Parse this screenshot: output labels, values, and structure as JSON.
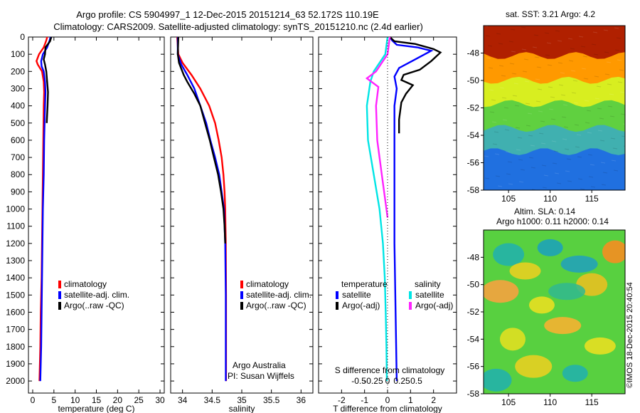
{
  "header": {
    "line1": "Argo profile: CS 5904997_1 12-Dec-2015 20151214_63 52.172S 110.19E",
    "line2": "Climatology: CARS2009. Satellite-adjusted climatology: synTS_20151210.nc (2.4d earlier)"
  },
  "footer": {
    "watermark": "©IMOS 18-Dec-2015 20:40:54"
  },
  "colors": {
    "climatology": "#ff0000",
    "satellite": "#0000ff",
    "argo": "#000000",
    "sal_satellite": "#00e5e5",
    "sal_argo": "#ff22ff"
  },
  "chart_data": [
    {
      "type": "line",
      "xlabel": "temperature (deg C)",
      "xlim": [
        -1,
        31
      ],
      "xticks": [
        "0",
        "5",
        "10",
        "15",
        "20",
        "25",
        "30"
      ],
      "ylim": [
        0,
        2070
      ],
      "yticks": [
        "0",
        "100",
        "200",
        "300",
        "400",
        "500",
        "600",
        "700",
        "800",
        "900",
        "1000",
        "1100",
        "1200",
        "1300",
        "1400",
        "1500",
        "1600",
        "1700",
        "1800",
        "1900",
        "2000"
      ],
      "legend": [
        "climatology",
        "satellite-adj. clim.",
        "Argo(..raw -QC)"
      ],
      "legend_position": "lower-right",
      "series": [
        {
          "name": "climatology",
          "color": "#ff0000",
          "points": [
            [
              3.4,
              0
            ],
            [
              3.2,
              20
            ],
            [
              2.6,
              60
            ],
            [
              1.5,
              100
            ],
            [
              0.9,
              140
            ],
            [
              1.2,
              160
            ],
            [
              2.2,
              200
            ],
            [
              2.6,
              260
            ],
            [
              2.7,
              320
            ],
            [
              2.6,
              400
            ],
            [
              2.5,
              600
            ],
            [
              2.4,
              800
            ],
            [
              2.3,
              1000
            ],
            [
              2.2,
              1200
            ],
            [
              2.1,
              1400
            ],
            [
              1.9,
              1600
            ],
            [
              1.8,
              1800
            ],
            [
              1.6,
              2000
            ]
          ]
        },
        {
          "name": "satellite-adj. clim.",
          "color": "#0000ff",
          "points": [
            [
              4.2,
              0
            ],
            [
              4.0,
              20
            ],
            [
              3.4,
              60
            ],
            [
              2.4,
              100
            ],
            [
              2.0,
              140
            ],
            [
              2.1,
              170
            ],
            [
              2.6,
              200
            ],
            [
              2.9,
              260
            ],
            [
              3.0,
              320
            ],
            [
              2.9,
              400
            ],
            [
              2.7,
              600
            ],
            [
              2.6,
              800
            ],
            [
              2.4,
              1000
            ],
            [
              2.3,
              1200
            ],
            [
              2.2,
              1400
            ],
            [
              2.1,
              1600
            ],
            [
              2.0,
              1800
            ],
            [
              1.8,
              2000
            ]
          ]
        },
        {
          "name": "Argo(..raw -QC)",
          "color": "#000000",
          "points": [
            [
              4.4,
              0
            ],
            [
              4.1,
              25
            ],
            [
              3.0,
              60
            ],
            [
              2.9,
              100
            ],
            [
              2.6,
              130
            ],
            [
              2.9,
              160
            ],
            [
              3.2,
              200
            ],
            [
              3.4,
              260
            ],
            [
              3.6,
              320
            ],
            [
              3.5,
              400
            ],
            [
              3.3,
              500
            ]
          ]
        }
      ]
    },
    {
      "type": "line",
      "xlabel": "salinity",
      "xlim": [
        33.8,
        36.2
      ],
      "xticks": [
        "34",
        "34.5",
        "35",
        "35.5",
        "36"
      ],
      "ylim": [
        0,
        2070
      ],
      "legend": [
        "climatology",
        "satellite-adj. clim.",
        "Argo(..raw -QC)"
      ],
      "legend_position": "lower-right",
      "annotations": [
        "Argo Australia",
        "PI: Susan Wijffels"
      ],
      "series": [
        {
          "name": "climatology",
          "color": "#ff0000",
          "points": [
            [
              33.91,
              0
            ],
            [
              33.93,
              100
            ],
            [
              34.0,
              150
            ],
            [
              34.15,
              220
            ],
            [
              34.3,
              300
            ],
            [
              34.45,
              400
            ],
            [
              34.55,
              500
            ],
            [
              34.61,
              600
            ],
            [
              34.66,
              700
            ],
            [
              34.69,
              800
            ],
            [
              34.71,
              900
            ],
            [
              34.72,
              1000
            ],
            [
              34.73,
              1200
            ],
            [
              34.735,
              1500
            ],
            [
              34.735,
              2000
            ]
          ]
        },
        {
          "name": "satellite-adj. clim.",
          "color": "#0000ff",
          "points": [
            [
              33.92,
              0
            ],
            [
              33.92,
              100
            ],
            [
              33.98,
              160
            ],
            [
              34.08,
              220
            ],
            [
              34.2,
              300
            ],
            [
              34.3,
              400
            ],
            [
              34.4,
              500
            ],
            [
              34.47,
              600
            ],
            [
              34.55,
              700
            ],
            [
              34.62,
              800
            ],
            [
              34.66,
              900
            ],
            [
              34.7,
              1000
            ],
            [
              34.72,
              1200
            ],
            [
              34.73,
              1500
            ],
            [
              34.73,
              2000
            ]
          ]
        },
        {
          "name": "Argo(..raw -QC)",
          "color": "#000000",
          "points": [
            [
              33.93,
              0
            ],
            [
              33.92,
              100
            ],
            [
              33.94,
              150
            ],
            [
              34.02,
              220
            ],
            [
              34.08,
              260
            ],
            [
              34.2,
              330
            ],
            [
              34.3,
              400
            ],
            [
              34.38,
              500
            ],
            [
              34.46,
              600
            ],
            [
              34.53,
              700
            ],
            [
              34.6,
              800
            ],
            [
              34.65,
              900
            ],
            [
              34.69,
              1000
            ],
            [
              34.71,
              1100
            ],
            [
              34.72,
              1200
            ]
          ]
        }
      ]
    },
    {
      "type": "line",
      "xlabel": "T difference from climatology",
      "xlabel_top": "S difference from climatology",
      "xlim": [
        -3,
        3
      ],
      "xticks": [
        "-2",
        "-1",
        "0",
        "1",
        "2"
      ],
      "xticks_top": [
        "-0.5",
        "-0.25",
        "0",
        "0.25",
        "0.5"
      ],
      "ylim": [
        0,
        2070
      ],
      "legend_headers": [
        "temperature",
        "salinity"
      ],
      "legend": [
        "satellite",
        "Argo(-adj)",
        "satellite",
        "Argo(-adj)"
      ],
      "legend_position": "lower-middle",
      "series": [
        {
          "name": "temperature satellite",
          "color": "#0000ff",
          "points": [
            [
              0.1,
              0
            ],
            [
              0.2,
              20
            ],
            [
              0.4,
              45
            ],
            [
              1.3,
              60
            ],
            [
              1.9,
              80
            ],
            [
              1.2,
              130
            ],
            [
              0.5,
              180
            ],
            [
              0.3,
              230
            ],
            [
              0.4,
              300
            ],
            [
              0.3,
              400
            ],
            [
              0.3,
              800
            ],
            [
              0.3,
              1200
            ],
            [
              0.35,
              1600
            ],
            [
              0.4,
              2000
            ]
          ]
        },
        {
          "name": "temperature Argo(-adj)",
          "color": "#000000",
          "points": [
            [
              0.1,
              0
            ],
            [
              0.3,
              25
            ],
            [
              1.2,
              40
            ],
            [
              2.0,
              70
            ],
            [
              2.3,
              90
            ],
            [
              1.9,
              140
            ],
            [
              1.4,
              190
            ],
            [
              0.7,
              220
            ],
            [
              0.6,
              250
            ],
            [
              1.1,
              280
            ],
            [
              0.8,
              330
            ],
            [
              0.6,
              380
            ],
            [
              0.5,
              480
            ],
            [
              0.5,
              560
            ]
          ]
        },
        {
          "name": "salinity satellite",
          "color": "#00e5e5",
          "points": [
            [
              0.0,
              0
            ],
            [
              -0.1,
              100
            ],
            [
              -0.6,
              200
            ],
            [
              -0.75,
              260
            ],
            [
              -0.9,
              400
            ],
            [
              -0.85,
              600
            ],
            [
              -0.6,
              800
            ],
            [
              -0.35,
              1000
            ],
            [
              -0.2,
              1200
            ],
            [
              -0.12,
              1400
            ],
            [
              -0.08,
              1600
            ],
            [
              -0.05,
              1800
            ],
            [
              -0.03,
              2000
            ]
          ]
        },
        {
          "name": "salinity Argo(-adj)",
          "color": "#ff22ff",
          "points": [
            [
              0.1,
              0
            ],
            [
              0.0,
              100
            ],
            [
              -0.5,
              200
            ],
            [
              -0.9,
              240
            ],
            [
              -0.4,
              290
            ],
            [
              -0.5,
              400
            ],
            [
              -0.45,
              600
            ],
            [
              -0.25,
              800
            ],
            [
              -0.1,
              950
            ],
            [
              0.0,
              1050
            ]
          ]
        }
      ]
    },
    {
      "type": "heatmap",
      "title": "sat. SST: 3.21 Argo: 4.2",
      "xlim": [
        102,
        119
      ],
      "xticks": [
        "105",
        "110",
        "115"
      ],
      "ylim": [
        -58,
        -46
      ],
      "yticks": [
        "-48",
        "-50",
        "-52",
        "-54",
        "-56",
        "-58"
      ],
      "color_bands": [
        {
          "to_lat": -48.5,
          "color": "#b02000"
        },
        {
          "to_lat": -50.3,
          "color": "#ff9900"
        },
        {
          "to_lat": -52.0,
          "color": "#d8ee20"
        },
        {
          "to_lat": -53.8,
          "color": "#60d040"
        },
        {
          "to_lat": -55.5,
          "color": "#40b0b0"
        },
        {
          "to_lat": -58.0,
          "color": "#2070e0"
        }
      ]
    },
    {
      "type": "heatmap",
      "title": "Altim. SLA: 0.14",
      "subtitle": "Argo h1000: 0.11 h2000: 0.14",
      "xlim": [
        102,
        119
      ],
      "xticks": [
        "105",
        "110",
        "115"
      ],
      "ylim": [
        -58,
        -46
      ],
      "yticks": [
        "-48",
        "-50",
        "-52",
        "-54",
        "-56",
        "-58"
      ],
      "background_color": "#58d040",
      "blobs": [
        {
          "lon": 110.0,
          "lat": -47.3,
          "color": "#1aa0c0"
        },
        {
          "lon": 105.0,
          "lat": -47.8,
          "color": "#20b0b0"
        },
        {
          "lon": 113.5,
          "lat": -48.5,
          "color": "#20a0c0"
        },
        {
          "lon": 117.8,
          "lat": -47.6,
          "color": "#ff8a20"
        },
        {
          "lon": 107.0,
          "lat": -49.0,
          "color": "#f0d020"
        },
        {
          "lon": 104.0,
          "lat": -50.5,
          "color": "#ffa040"
        },
        {
          "lon": 109.0,
          "lat": -51.5,
          "color": "#f0e020"
        },
        {
          "lon": 115.0,
          "lat": -50.0,
          "color": "#f0c020"
        },
        {
          "lon": 111.5,
          "lat": -53.0,
          "color": "#ffb030"
        },
        {
          "lon": 105.5,
          "lat": -54.0,
          "color": "#e8e020"
        },
        {
          "lon": 116.0,
          "lat": -54.5,
          "color": "#f0e020"
        },
        {
          "lon": 108.0,
          "lat": -56.0,
          "color": "#f0d020"
        },
        {
          "lon": 113.0,
          "lat": -56.5,
          "color": "#20b0b0"
        },
        {
          "lon": 103.5,
          "lat": -57.0,
          "color": "#20b0b0"
        },
        {
          "lon": 112.0,
          "lat": -50.5,
          "color": "#30b890"
        }
      ]
    }
  ]
}
